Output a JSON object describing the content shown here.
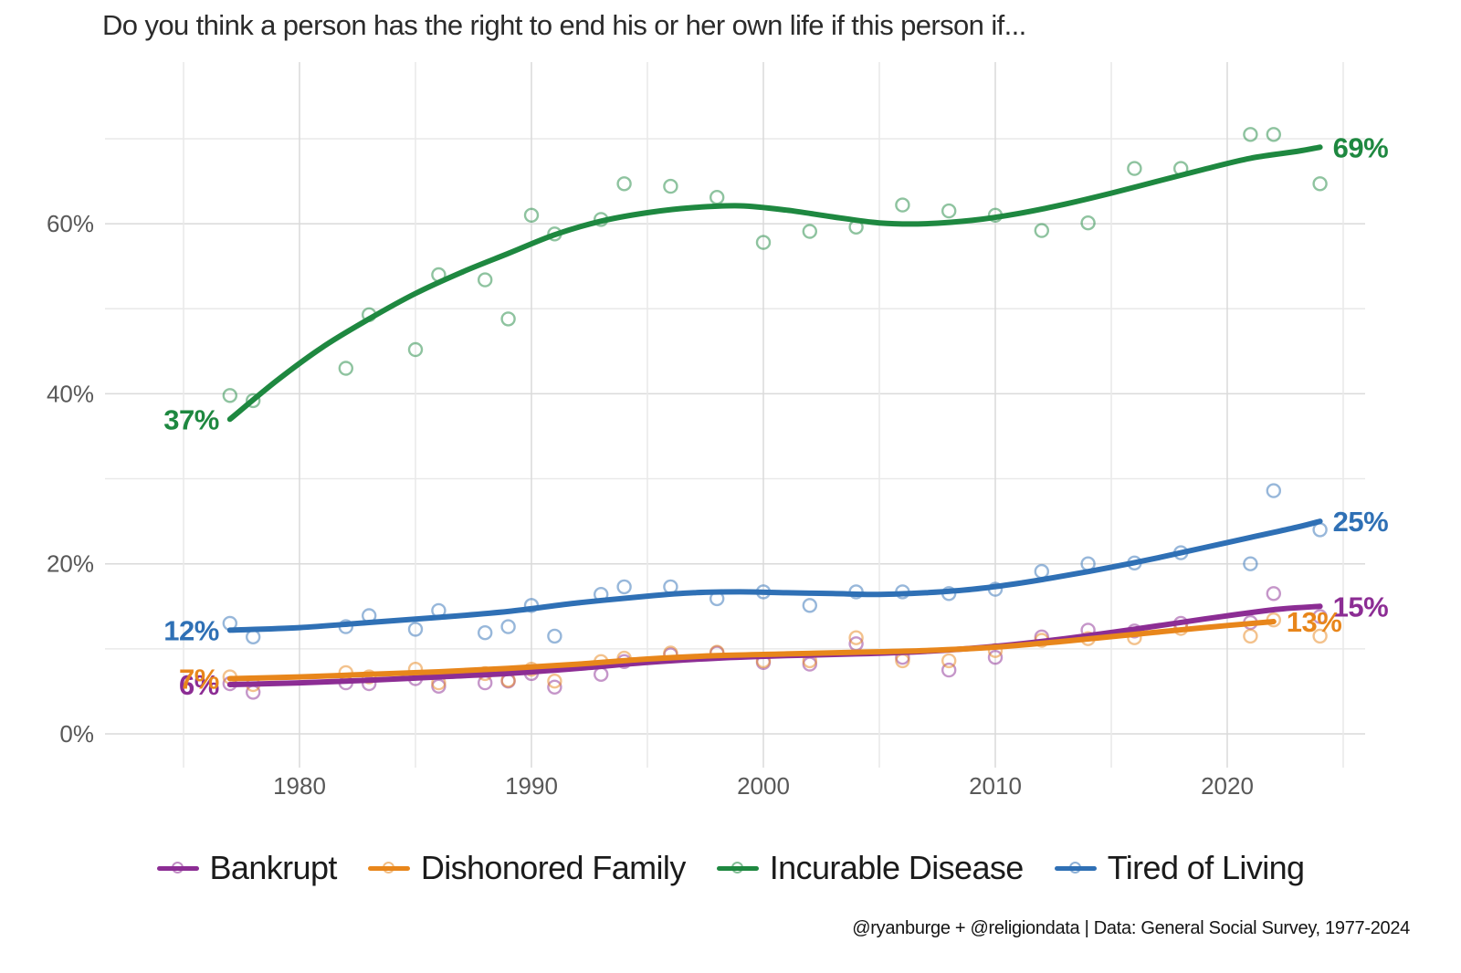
{
  "title": "Do you think a person has the right to end his or her own life if this person if...",
  "caption": "@ryanburge + @religiondata | Data: General Social Survey, 1977-2024",
  "colors": {
    "bankrupt": "#8c2d94",
    "dishonored_family": "#e8861b",
    "incurable_disease": "#1e8840",
    "tired_of_living": "#2f70b5",
    "gridline_major": "#dadada",
    "gridline_minor": "#e9e9e9",
    "axis_text": "#585858",
    "title_text": "#2b2b2b"
  },
  "chart_data": {
    "type": "scatter",
    "title": "Do you think a person has the right to end his or her own life if this person if...",
    "x_axis": {
      "range": [
        1971.6,
        2025.9
      ],
      "ticks": [
        {
          "v": 1980,
          "label": "1980"
        },
        {
          "v": 1990,
          "label": "1990"
        },
        {
          "v": 2000,
          "label": "2000"
        },
        {
          "v": 2010,
          "label": "2010"
        },
        {
          "v": 2020,
          "label": "2020"
        }
      ],
      "minor_gridline_years": [
        1975,
        1980,
        1985,
        1990,
        1995,
        2000,
        2005,
        2010,
        2015,
        2020,
        2025
      ]
    },
    "y_axis": {
      "range": [
        0,
        79
      ],
      "ticks": [
        {
          "v": 0,
          "label": "0%"
        },
        {
          "v": 20,
          "label": "20%"
        },
        {
          "v": 40,
          "label": "40%"
        },
        {
          "v": 60,
          "label": "60%"
        }
      ],
      "minor_gridline_pcts": [
        0,
        10,
        20,
        30,
        40,
        50,
        60,
        70
      ]
    },
    "years": [
      1977,
      1978,
      1982,
      1983,
      1985,
      1986,
      1988,
      1989,
      1990,
      1991,
      1993,
      1994,
      1996,
      1998,
      2000,
      2002,
      2004,
      2006,
      2008,
      2010,
      2012,
      2014,
      2016,
      2018,
      2021,
      2022,
      2024
    ],
    "series": [
      {
        "name": "Bankrupt",
        "color": "#8c2d94",
        "start_label": "6%",
        "end_label": "15%",
        "values": [
          5.9,
          4.9,
          6.0,
          5.9,
          6.5,
          5.6,
          6.0,
          6.2,
          7.1,
          5.5,
          7.0,
          8.5,
          9.3,
          9.5,
          8.4,
          8.2,
          10.6,
          9.0,
          7.5,
          9.0,
          11.4,
          12.2,
          12.1,
          13.0,
          13.1,
          16.5,
          13.8
        ],
        "trend": [
          [
            1977,
            5.8
          ],
          [
            1980,
            6.0
          ],
          [
            1983,
            6.3
          ],
          [
            1986,
            6.7
          ],
          [
            1989,
            7.1
          ],
          [
            1992,
            7.7
          ],
          [
            1995,
            8.4
          ],
          [
            1998,
            8.9
          ],
          [
            2001,
            9.2
          ],
          [
            2004,
            9.4
          ],
          [
            2007,
            9.7
          ],
          [
            2010,
            10.3
          ],
          [
            2013,
            11.2
          ],
          [
            2016,
            12.3
          ],
          [
            2019,
            13.5
          ],
          [
            2022,
            14.6
          ],
          [
            2024,
            15.0
          ]
        ]
      },
      {
        "name": "Dishonored Family",
        "color": "#e8861b",
        "start_label": "7%",
        "end_label": "13%",
        "values": [
          6.7,
          5.8,
          7.2,
          6.7,
          7.6,
          6.0,
          7.1,
          6.3,
          7.6,
          6.2,
          8.5,
          8.9,
          9.5,
          9.6,
          8.6,
          8.6,
          11.3,
          8.6,
          8.6,
          9.8,
          11.0,
          11.2,
          11.3,
          12.4,
          11.5,
          13.4,
          11.5
        ],
        "trend": [
          [
            1977,
            6.5
          ],
          [
            1980,
            6.7
          ],
          [
            1983,
            7.0
          ],
          [
            1986,
            7.3
          ],
          [
            1989,
            7.7
          ],
          [
            1992,
            8.2
          ],
          [
            1995,
            8.8
          ],
          [
            1998,
            9.2
          ],
          [
            2001,
            9.4
          ],
          [
            2004,
            9.6
          ],
          [
            2007,
            9.8
          ],
          [
            2010,
            10.2
          ],
          [
            2013,
            10.9
          ],
          [
            2016,
            11.7
          ],
          [
            2019,
            12.5
          ],
          [
            2022,
            13.2
          ]
        ]
      },
      {
        "name": "Incurable Disease",
        "color": "#1e8840",
        "start_label": "37%",
        "end_label": "69%",
        "values": [
          39.8,
          39.2,
          43.0,
          49.3,
          45.2,
          54.0,
          53.4,
          48.8,
          61.0,
          58.8,
          60.5,
          64.7,
          64.4,
          63.1,
          57.8,
          59.1,
          59.6,
          62.2,
          61.5,
          61.0,
          59.2,
          60.1,
          66.5,
          66.5,
          70.5,
          70.5,
          64.7
        ],
        "trend": [
          [
            1977,
            37.0
          ],
          [
            1979,
            41.5
          ],
          [
            1981,
            45.5
          ],
          [
            1983,
            48.8
          ],
          [
            1985,
            51.8
          ],
          [
            1987,
            54.3
          ],
          [
            1989,
            56.5
          ],
          [
            1991,
            58.7
          ],
          [
            1993,
            60.3
          ],
          [
            1995,
            61.3
          ],
          [
            1997,
            61.9
          ],
          [
            1999,
            62.1
          ],
          [
            2001,
            61.6
          ],
          [
            2003,
            60.8
          ],
          [
            2005,
            60.1
          ],
          [
            2007,
            60.0
          ],
          [
            2009,
            60.4
          ],
          [
            2011,
            61.2
          ],
          [
            2013,
            62.3
          ],
          [
            2015,
            63.6
          ],
          [
            2017,
            65.0
          ],
          [
            2019,
            66.4
          ],
          [
            2021,
            67.7
          ],
          [
            2023,
            68.5
          ],
          [
            2024,
            69.0
          ]
        ]
      },
      {
        "name": "Tired of Living",
        "color": "#2f70b5",
        "start_label": "12%",
        "end_label": "25%",
        "values": [
          13.0,
          11.4,
          12.6,
          13.9,
          12.3,
          14.5,
          11.9,
          12.6,
          15.1,
          11.5,
          16.4,
          17.3,
          17.3,
          15.9,
          16.7,
          15.1,
          16.7,
          16.7,
          16.5,
          17.0,
          19.1,
          20.0,
          20.1,
          21.3,
          20.0,
          28.6,
          24.0
        ],
        "trend": [
          [
            1977,
            12.2
          ],
          [
            1980,
            12.5
          ],
          [
            1983,
            13.1
          ],
          [
            1986,
            13.7
          ],
          [
            1989,
            14.4
          ],
          [
            1992,
            15.4
          ],
          [
            1995,
            16.2
          ],
          [
            1997,
            16.6
          ],
          [
            1999,
            16.7
          ],
          [
            2001,
            16.6
          ],
          [
            2003,
            16.5
          ],
          [
            2005,
            16.4
          ],
          [
            2007,
            16.6
          ],
          [
            2009,
            17.0
          ],
          [
            2011,
            17.7
          ],
          [
            2013,
            18.6
          ],
          [
            2015,
            19.6
          ],
          [
            2017,
            20.7
          ],
          [
            2019,
            21.9
          ],
          [
            2021,
            23.1
          ],
          [
            2023,
            24.3
          ],
          [
            2024,
            25.0
          ]
        ]
      }
    ],
    "legend": [
      "Bankrupt",
      "Dishonored Family",
      "Incurable Disease",
      "Tired of Living"
    ],
    "source_note": "@ryanburge + @religiondata | Data: General Social Survey, 1977-2024"
  }
}
